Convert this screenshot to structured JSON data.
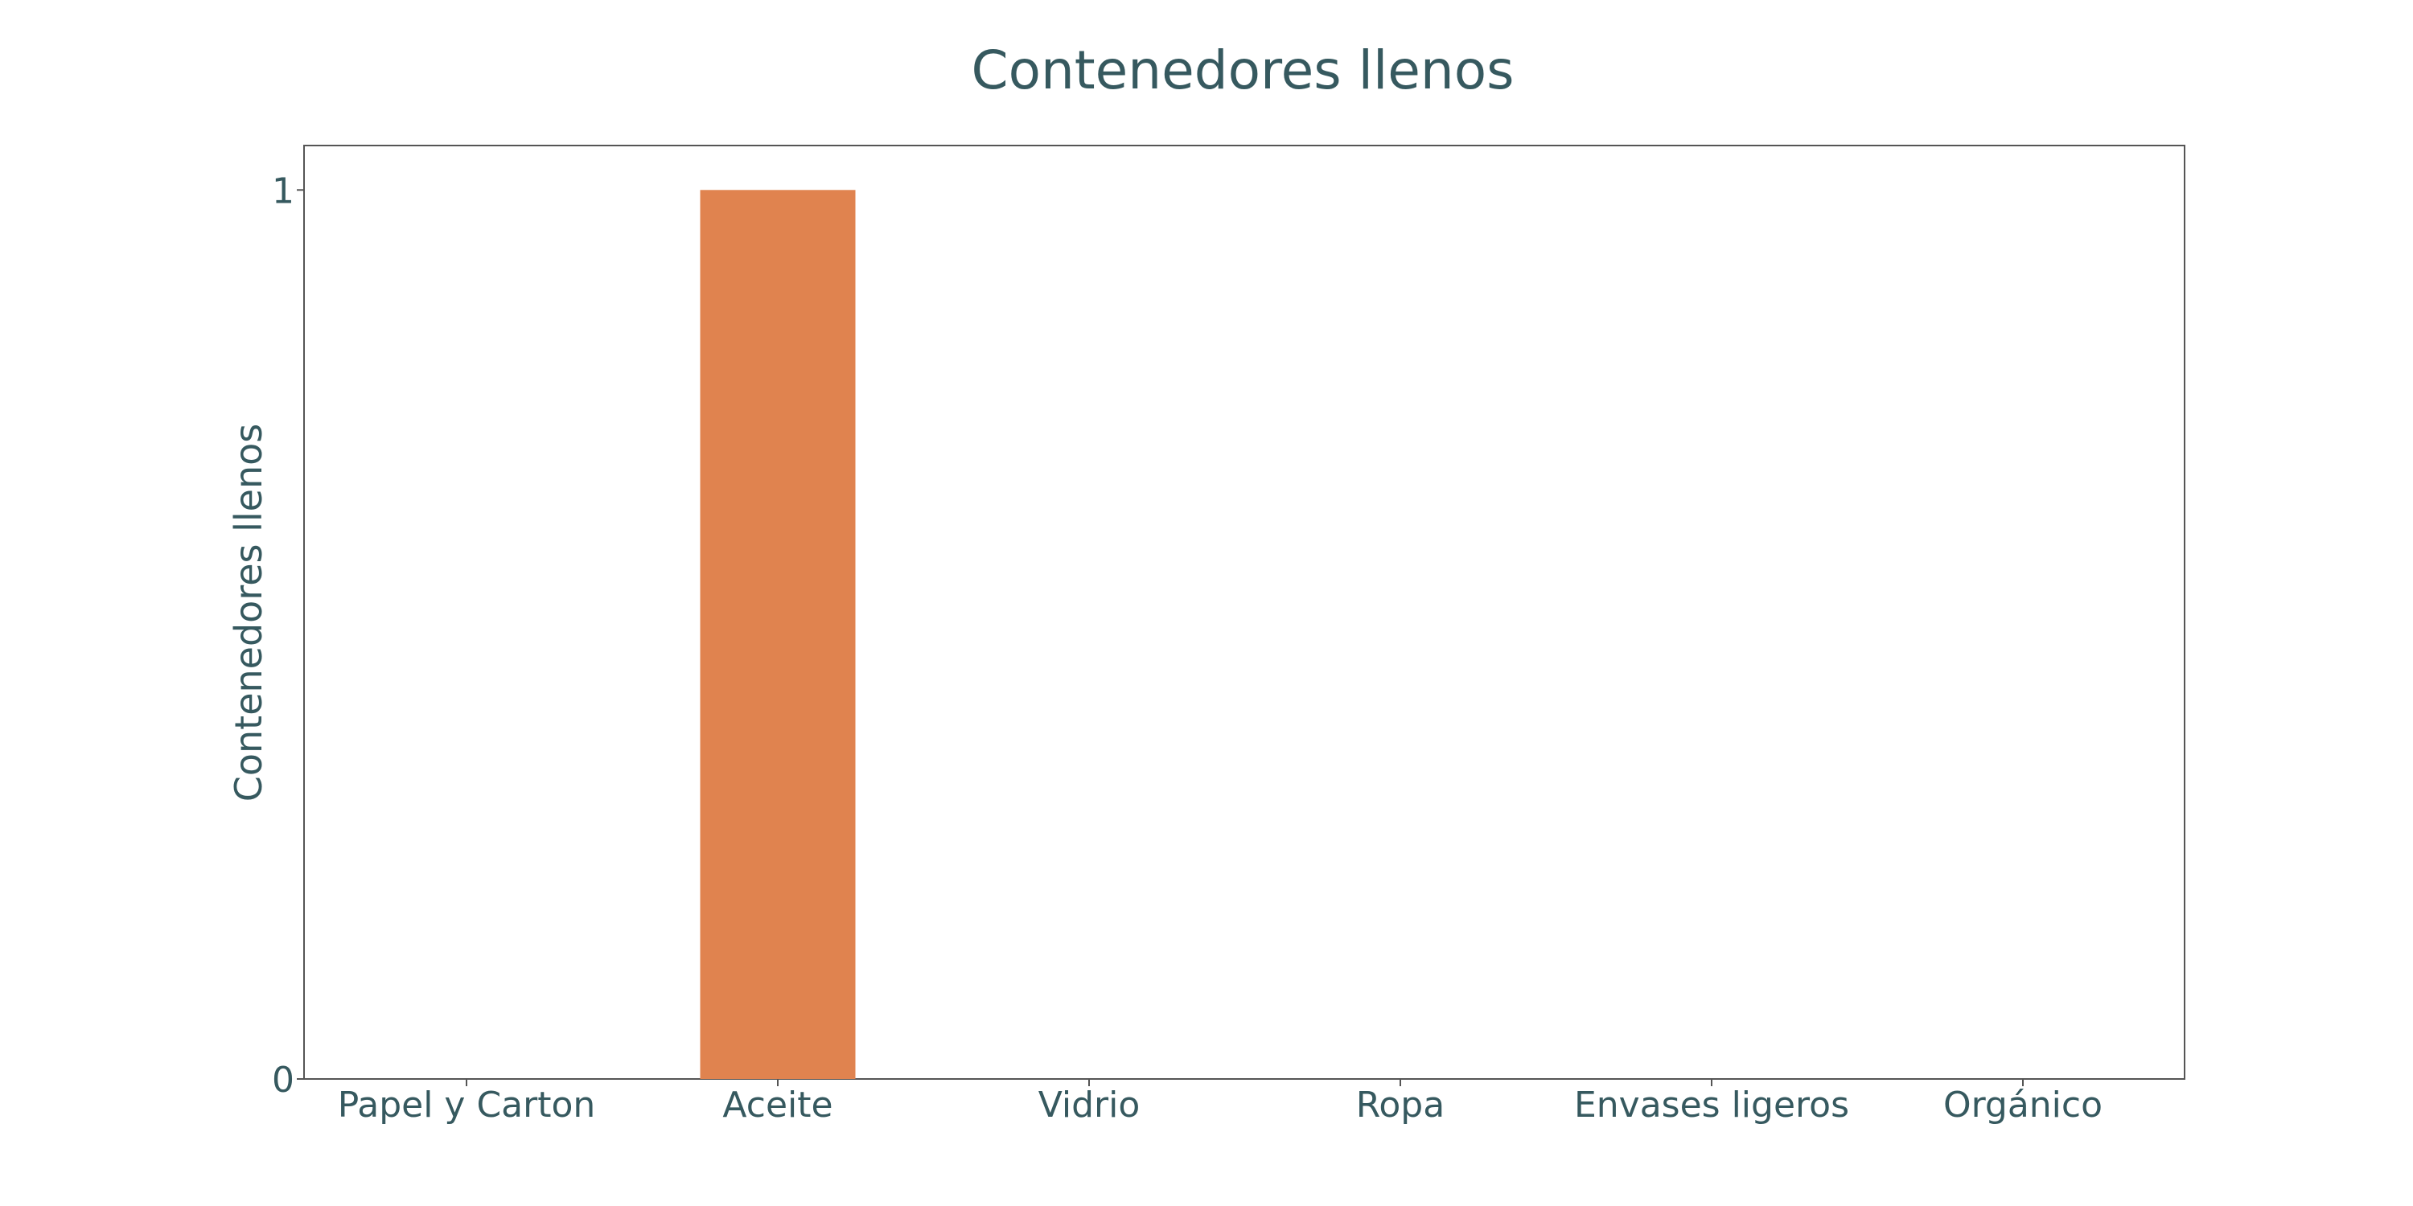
{
  "chart_data": {
    "type": "bar",
    "title": "Contenedores llenos",
    "xlabel": "",
    "ylabel": "Contenedores llenos",
    "categories": [
      "Papel y Carton",
      "Aceite",
      "Vidrio",
      "Ropa",
      "Envases ligeros",
      "Orgánico"
    ],
    "values": [
      0,
      1,
      0,
      0,
      0,
      0
    ],
    "ylim": [
      0,
      1.05
    ],
    "yticks": [
      0,
      1
    ],
    "grid": false,
    "legend": "none",
    "bar_color": "#e0834f",
    "text_color": "#36595f",
    "axis_color": "#555555"
  }
}
